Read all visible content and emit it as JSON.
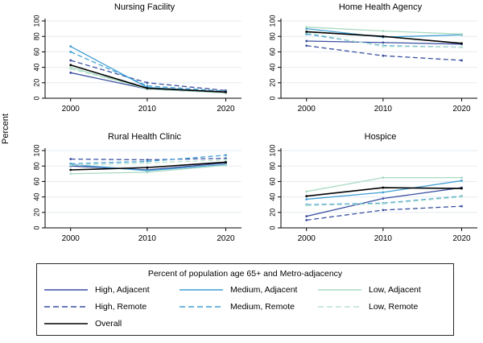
{
  "figure": {
    "ylabel": "Percent",
    "grid_color": "#e6ebf0",
    "axis_color": "#000000"
  },
  "legend": {
    "title": "Percent of population age 65+ and Metro-adjacency",
    "items": [
      {
        "label": "High, Adjacent",
        "color": "#3a4fa0",
        "dashed": false
      },
      {
        "label": "Medium, Adjacent",
        "color": "#419fd4",
        "dashed": false
      },
      {
        "label": "Low, Adjacent",
        "color": "#a9dac2",
        "dashed": false
      },
      {
        "label": "High, Remote",
        "color": "#3a4fa0",
        "dashed": true
      },
      {
        "label": "Medium, Remote",
        "color": "#419fd4",
        "dashed": true
      },
      {
        "label": "Low, Remote",
        "color": "#b9e2ce",
        "dashed": true
      },
      {
        "label": "Overall",
        "color": "#000000",
        "dashed": false
      }
    ]
  },
  "chart_data": [
    {
      "type": "line",
      "title": "Nursing Facility",
      "x": [
        "2000",
        "2010",
        "2020"
      ],
      "ylabel": "Percent",
      "ylim": [
        0,
        100
      ],
      "yticks": [
        0,
        20,
        40,
        60,
        80,
        100
      ],
      "grid": true,
      "series": [
        {
          "name": "High, Adjacent",
          "color": "#3a4fa0",
          "dashed": false,
          "values": [
            33,
            12,
            7
          ]
        },
        {
          "name": "High, Remote",
          "color": "#3a4fa0",
          "dashed": true,
          "values": [
            49,
            20,
            10
          ]
        },
        {
          "name": "Medium, Adjacent",
          "color": "#419fd4",
          "dashed": false,
          "values": [
            67,
            14,
            8
          ]
        },
        {
          "name": "Medium, Remote",
          "color": "#419fd4",
          "dashed": true,
          "values": [
            60,
            16,
            9
          ]
        },
        {
          "name": "Low, Adjacent",
          "color": "#a9dac2",
          "dashed": false,
          "values": [
            40,
            12,
            7
          ]
        },
        {
          "name": "Low, Remote",
          "color": "#b9e2ce",
          "dashed": true,
          "values": [
            38,
            13,
            8
          ]
        },
        {
          "name": "Overall",
          "color": "#000000",
          "dashed": false,
          "values": [
            43,
            13,
            8
          ]
        }
      ]
    },
    {
      "type": "line",
      "title": "Home Health Agency",
      "x": [
        "2000",
        "2010",
        "2020"
      ],
      "ylabel": "Percent",
      "ylim": [
        0,
        100
      ],
      "yticks": [
        0,
        20,
        40,
        60,
        80,
        100
      ],
      "grid": true,
      "series": [
        {
          "name": "High, Adjacent",
          "color": "#3a4fa0",
          "dashed": false,
          "values": [
            74,
            72,
            70
          ]
        },
        {
          "name": "High, Remote",
          "color": "#3a4fa0",
          "dashed": true,
          "values": [
            68,
            55,
            49
          ]
        },
        {
          "name": "Medium, Adjacent",
          "color": "#419fd4",
          "dashed": false,
          "values": [
            90,
            79,
            82
          ]
        },
        {
          "name": "Medium, Remote",
          "color": "#419fd4",
          "dashed": true,
          "values": [
            83,
            68,
            66
          ]
        },
        {
          "name": "Low, Adjacent",
          "color": "#a9dac2",
          "dashed": false,
          "values": [
            92,
            87,
            83
          ]
        },
        {
          "name": "Low, Remote",
          "color": "#b9e2ce",
          "dashed": true,
          "values": [
            85,
            67,
            66
          ]
        },
        {
          "name": "Overall",
          "color": "#000000",
          "dashed": false,
          "values": [
            86,
            80,
            71
          ]
        }
      ]
    },
    {
      "type": "line",
      "title": "Rural Health Clinic",
      "x": [
        "2000",
        "2010",
        "2020"
      ],
      "ylabel": "Percent",
      "ylim": [
        0,
        100
      ],
      "yticks": [
        0,
        20,
        40,
        60,
        80,
        100
      ],
      "grid": true,
      "series": [
        {
          "name": "High, Adjacent",
          "color": "#3a4fa0",
          "dashed": false,
          "values": [
            80,
            75,
            84
          ]
        },
        {
          "name": "High, Remote",
          "color": "#3a4fa0",
          "dashed": true,
          "values": [
            89,
            88,
            90
          ]
        },
        {
          "name": "Medium, Adjacent",
          "color": "#419fd4",
          "dashed": false,
          "values": [
            82,
            74,
            82
          ]
        },
        {
          "name": "Medium, Remote",
          "color": "#419fd4",
          "dashed": true,
          "values": [
            83,
            86,
            94
          ]
        },
        {
          "name": "Low, Adjacent",
          "color": "#a9dac2",
          "dashed": false,
          "values": [
            70,
            72,
            81
          ]
        },
        {
          "name": "Low, Remote",
          "color": "#b9e2ce",
          "dashed": true,
          "values": [
            81,
            84,
            88
          ]
        },
        {
          "name": "Overall",
          "color": "#000000",
          "dashed": false,
          "values": [
            75,
            78,
            85
          ]
        }
      ]
    },
    {
      "type": "line",
      "title": "Hospice",
      "x": [
        "2000",
        "2010",
        "2020"
      ],
      "ylabel": "Percent",
      "ylim": [
        0,
        100
      ],
      "yticks": [
        0,
        20,
        40,
        60,
        80,
        100
      ],
      "grid": true,
      "series": [
        {
          "name": "High, Adjacent",
          "color": "#3a4fa0",
          "dashed": false,
          "values": [
            15,
            38,
            52
          ]
        },
        {
          "name": "High, Remote",
          "color": "#3a4fa0",
          "dashed": true,
          "values": [
            10,
            23,
            28
          ]
        },
        {
          "name": "Medium, Adjacent",
          "color": "#419fd4",
          "dashed": false,
          "values": [
            37,
            46,
            61
          ]
        },
        {
          "name": "Medium, Remote",
          "color": "#419fd4",
          "dashed": true,
          "values": [
            30,
            32,
            41
          ]
        },
        {
          "name": "Low, Adjacent",
          "color": "#a9dac2",
          "dashed": false,
          "values": [
            47,
            65,
            65
          ]
        },
        {
          "name": "Low, Remote",
          "color": "#b9e2ce",
          "dashed": true,
          "values": [
            29,
            31,
            40
          ]
        },
        {
          "name": "Overall",
          "color": "#000000",
          "dashed": false,
          "values": [
            41,
            52,
            51
          ]
        }
      ]
    }
  ]
}
